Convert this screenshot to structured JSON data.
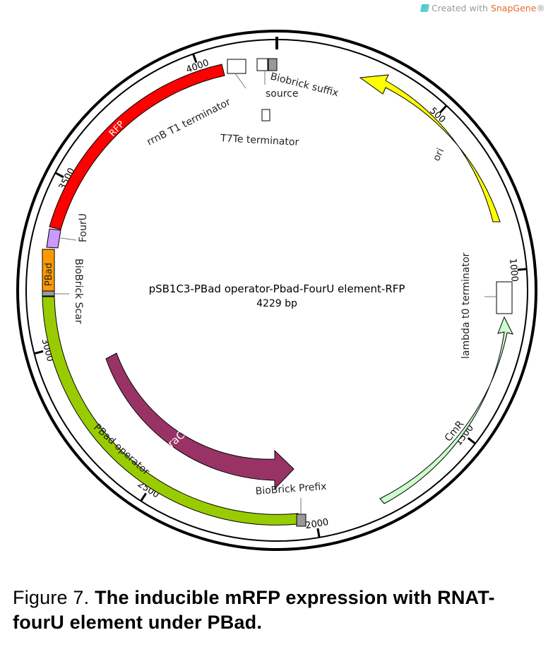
{
  "watermark": {
    "prefix": "Created with ",
    "brand": "SnapGene",
    "mark": "®"
  },
  "plasmid": {
    "name": "pSB1C3-PBad operator-Pbad-FourU element-RFP",
    "size_text": "4229 bp",
    "length_bp": 4229
  },
  "ticks": [
    {
      "label": "500",
      "bp": 500
    },
    {
      "label": "1000",
      "bp": 1000
    },
    {
      "label": "1500",
      "bp": 1500
    },
    {
      "label": "2000",
      "bp": 2000
    },
    {
      "label": "2500",
      "bp": 2500
    },
    {
      "label": "3000",
      "bp": 3000
    },
    {
      "label": "3500",
      "bp": 3500
    },
    {
      "label": "4000",
      "bp": 4000
    }
  ],
  "features": {
    "ori": {
      "label": "ori",
      "color": "#ffff00"
    },
    "cmr": {
      "label": "CmR",
      "color": "#ccffcc"
    },
    "arac": {
      "label": "araC",
      "color": "#993366"
    },
    "pbad_operator": {
      "label": "PBad operator",
      "color": "#99cc00"
    },
    "pbad": {
      "label": "PBad",
      "color": "#ff9900"
    },
    "fouru": {
      "label": "FourU",
      "color": "#cc99ff"
    },
    "rfp": {
      "label": "RFP",
      "color": "#ff0000"
    }
  },
  "annotations": {
    "rrnb_t1": "rrnB T1 terminator",
    "biobrick_suffix": "Biobrick suffix",
    "source": "source",
    "t7te": "T7Te terminator",
    "lambda_t0": "lambda t0 terminator",
    "biobrick_prefix": "BioBrick Prefix",
    "biobrick_scar": "BioBrick Scar",
    "fouru": "FourU"
  },
  "caption": {
    "prefix": "Figure 7. ",
    "bold": "The inducible mRFP expression with RNAT-fourU element under PBad."
  }
}
